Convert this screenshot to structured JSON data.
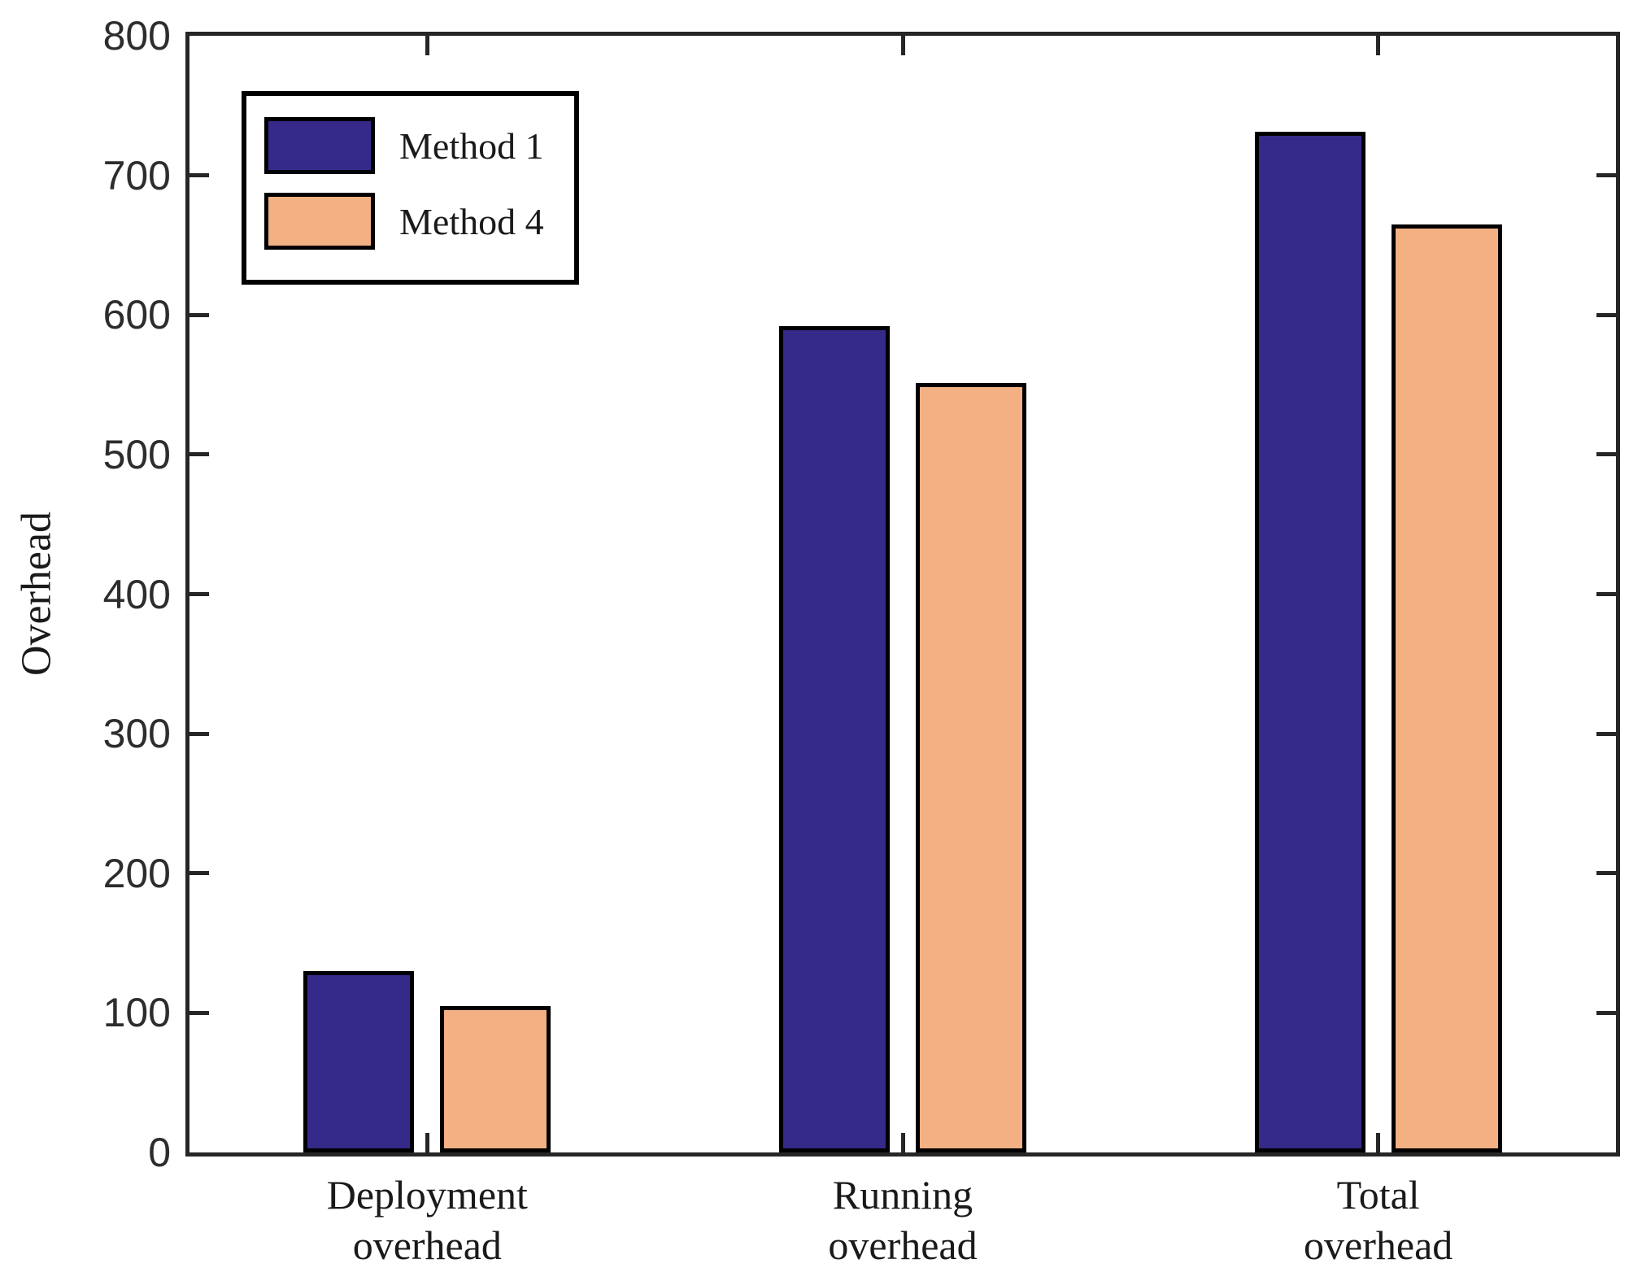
{
  "figure": {
    "background": "#ffffff",
    "axis_color": "#262626",
    "bar_edge_color": "#000000"
  },
  "chart_data": {
    "type": "bar",
    "title": "",
    "xlabel": "",
    "ylabel": "Overhead",
    "categories": [
      "Deployment\noverhead",
      "Running\noverhead",
      "Total\noverhead"
    ],
    "series": [
      {
        "name": "Method 1",
        "color": "#352A8A",
        "values": [
          130,
          592,
          731
        ]
      },
      {
        "name": "Method 4",
        "color": "#F2B083",
        "values": [
          105,
          551,
          665
        ]
      }
    ],
    "ylim": [
      0,
      800
    ],
    "yticks": [
      0,
      100,
      200,
      300,
      400,
      500,
      600,
      700,
      800
    ],
    "grid": false,
    "legend_position": "top-left",
    "box": true
  }
}
